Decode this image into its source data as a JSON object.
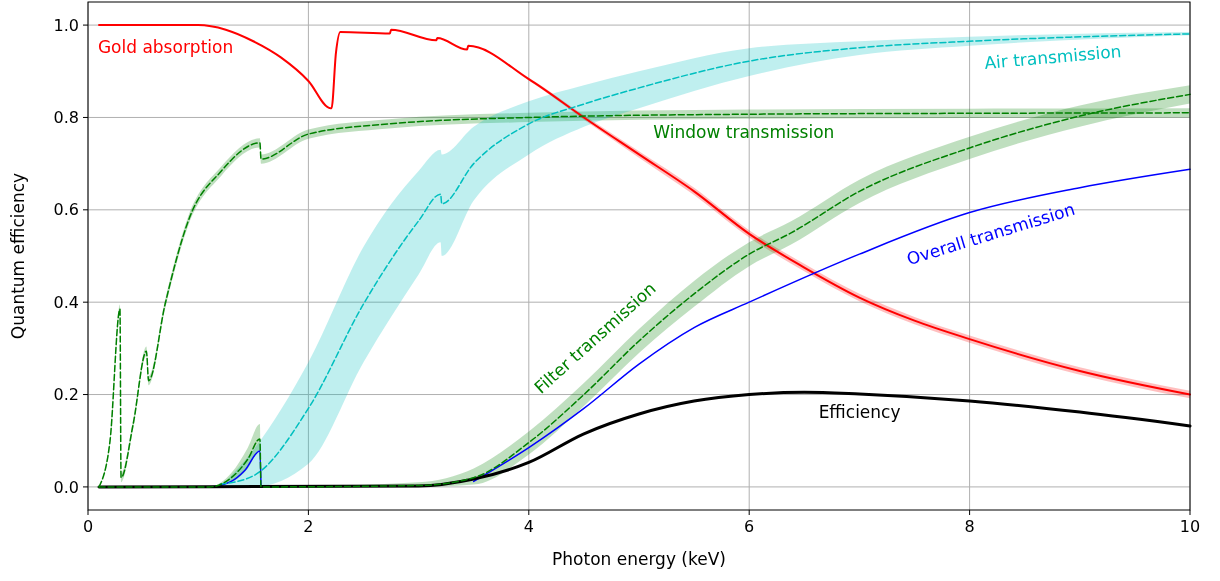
{
  "chart_data": {
    "type": "line",
    "xlabel": "Photon energy (keV)",
    "ylabel": "Quantum efficiency",
    "xlim": [
      0,
      10
    ],
    "ylim": [
      -0.05,
      1.05
    ],
    "xticks": [
      0,
      2,
      4,
      6,
      8,
      10
    ],
    "yticks": [
      {
        "value": 0,
        "label": "0.0"
      },
      {
        "value": 0.2,
        "label": "0.2"
      },
      {
        "value": 0.4,
        "label": "0.4"
      },
      {
        "value": 0.6,
        "label": "0.6"
      },
      {
        "value": 0.8,
        "label": "0.8"
      },
      {
        "value": 1,
        "label": "1.0"
      }
    ],
    "grid": true,
    "series": [
      {
        "name": "Gold absorption",
        "color": "#ff0000",
        "line_style": "solid",
        "x": [
          0.1,
          1.0,
          1.25,
          1.5,
          1.75,
          2.0,
          2.2,
          2.21,
          2.25,
          2.29,
          2.74,
          2.75,
          3.16,
          3.17,
          3.44,
          3.45,
          4,
          4.5,
          5,
          5.5,
          6,
          6.5,
          7,
          7.5,
          8,
          9,
          10
        ],
        "values": [
          1.0,
          1.0,
          0.99,
          0.965,
          0.93,
          0.879,
          0.82,
          0.82,
          0.94,
          0.985,
          0.982,
          0.99,
          0.967,
          0.972,
          0.947,
          0.955,
          0.883,
          0.8,
          0.72,
          0.64,
          0.548,
          0.475,
          0.41,
          0.36,
          0.32,
          0.251,
          0.2
        ],
        "lower": [
          1.0,
          1.0,
          0.99,
          0.965,
          0.93,
          0.879,
          0.82,
          0.82,
          0.94,
          0.985,
          0.982,
          0.99,
          0.967,
          0.972,
          0.947,
          0.955,
          0.88,
          0.795,
          0.713,
          0.632,
          0.54,
          0.467,
          0.402,
          0.352,
          0.312,
          0.243,
          0.192
        ],
        "upper": [
          1.0,
          1.0,
          0.99,
          0.965,
          0.93,
          0.879,
          0.82,
          0.82,
          0.94,
          0.985,
          0.982,
          0.99,
          0.967,
          0.972,
          0.947,
          0.955,
          0.886,
          0.805,
          0.727,
          0.648,
          0.556,
          0.483,
          0.418,
          0.368,
          0.328,
          0.259,
          0.208
        ]
      },
      {
        "name": "Window transmission",
        "color": "#008000",
        "line_style": "dashed",
        "x": [
          0.1,
          0.2,
          0.29,
          0.3,
          0.41,
          0.53,
          0.55,
          0.7,
          0.91,
          1.21,
          1.56,
          1.57,
          2.0,
          2.73,
          4,
          6,
          8,
          10
        ],
        "values": [
          0,
          0.1,
          0.385,
          0.02,
          0.136,
          0.294,
          0.23,
          0.396,
          0.576,
          0.684,
          0.745,
          0.71,
          0.764,
          0.786,
          0.8,
          0.807,
          0.809,
          0.81
        ],
        "lower": [
          0,
          0.09,
          0.375,
          0.01,
          0.126,
          0.284,
          0.22,
          0.386,
          0.566,
          0.674,
          0.735,
          0.7,
          0.754,
          0.776,
          0.79,
          0.797,
          0.799,
          0.8
        ],
        "upper": [
          0,
          0.11,
          0.395,
          0.03,
          0.146,
          0.304,
          0.24,
          0.406,
          0.586,
          0.694,
          0.755,
          0.72,
          0.774,
          0.796,
          0.81,
          0.817,
          0.819,
          0.82
        ]
      },
      {
        "name": "Air transmission",
        "color": "#00bfbf",
        "line_style": "dashed",
        "x": [
          1.2,
          1.5,
          2,
          2.5,
          3,
          3.2,
          3.21,
          3.5,
          4,
          4.5,
          5,
          6,
          7,
          8,
          10
        ],
        "values": [
          0.006,
          0.024,
          0.17,
          0.396,
          0.576,
          0.634,
          0.613,
          0.7,
          0.786,
          0.829,
          0.864,
          0.922,
          0.951,
          0.965,
          0.981
        ],
        "lower": [
          0,
          0,
          0.05,
          0.27,
          0.46,
          0.53,
          0.5,
          0.62,
          0.72,
          0.78,
          0.82,
          0.89,
          0.935,
          0.955,
          0.978
        ],
        "upper": [
          0,
          0.08,
          0.27,
          0.52,
          0.684,
          0.73,
          0.72,
          0.78,
          0.835,
          0.87,
          0.9,
          0.95,
          0.965,
          0.975,
          0.985
        ]
      },
      {
        "name": "Filter transmission",
        "color": "#008000",
        "line_style": "dashed",
        "x": [
          0.1,
          1.1,
          1.3,
          1.45,
          1.56,
          1.57,
          3.0,
          3.5,
          4,
          4.5,
          5,
          5.5,
          6,
          6.38,
          7,
          8,
          9,
          10
        ],
        "values": [
          0,
          0,
          0.02,
          0.06,
          0.104,
          0,
          0.003,
          0.02,
          0.096,
          0.2,
          0.316,
          0.418,
          0.504,
          0.55,
          0.64,
          0.734,
          0.803,
          0.85
        ],
        "lower": [
          0,
          0,
          0.01,
          0.04,
          0.08,
          0,
          0,
          0.005,
          0.07,
          0.175,
          0.29,
          0.39,
          0.478,
          0.525,
          0.615,
          0.71,
          0.78,
          0.83
        ],
        "upper": [
          0,
          0,
          0.03,
          0.085,
          0.136,
          0,
          0.01,
          0.04,
          0.12,
          0.225,
          0.342,
          0.446,
          0.53,
          0.575,
          0.665,
          0.758,
          0.826,
          0.87
        ]
      },
      {
        "name": "Overall transmission",
        "color": "#0000ff",
        "line_style": "solid",
        "x": [
          0.1,
          1.1,
          1.3,
          1.42,
          1.56,
          1.57,
          3.0,
          3.5,
          4,
          4.5,
          5,
          5.5,
          6,
          7,
          8,
          9,
          10
        ],
        "values": [
          0,
          0,
          0.012,
          0.035,
          0.078,
          0,
          null,
          0.012,
          0.085,
          0.17,
          0.266,
          0.345,
          0.4,
          0.504,
          0.594,
          0.648,
          0.688
        ]
      },
      {
        "name": "Efficiency",
        "color": "#000000",
        "line_style": "solid",
        "x": [
          0.1,
          3.0,
          3.5,
          4,
          4.5,
          5,
          5.5,
          6,
          6.5,
          7,
          8,
          9,
          10
        ],
        "values": [
          0,
          0.002,
          0.017,
          0.053,
          0.115,
          0.158,
          0.186,
          0.2,
          0.205,
          0.201,
          0.186,
          0.162,
          0.132
        ]
      }
    ]
  }
}
